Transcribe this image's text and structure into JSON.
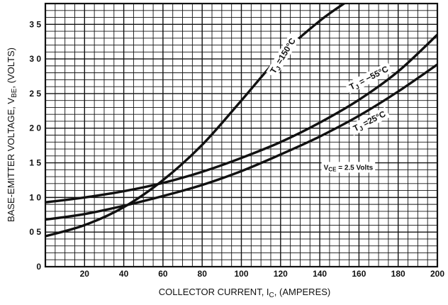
{
  "chart_data": {
    "type": "line",
    "xlabel": "COLLECTOR CURRENT, I",
    "xlabel_sub": "C",
    "xlabel_tail": ", (AMPERES)",
    "ylabel": "BASE-EMITTER VOLTAGE, V",
    "ylabel_sub": "BE",
    "ylabel_tail": ", (VOLTS)",
    "xlim": [
      0,
      200
    ],
    "ylim": [
      0,
      3.8
    ],
    "grid": true,
    "x_ticks": [
      20,
      40,
      60,
      80,
      100,
      120,
      140,
      160,
      180,
      200
    ],
    "y_ticks": [
      {
        "value": 0,
        "label": "0"
      },
      {
        "value": 0.5,
        "label": "0 5"
      },
      {
        "value": 1.0,
        "label": "1 0"
      },
      {
        "value": 1.5,
        "label": "1 5"
      },
      {
        "value": 2.0,
        "label": "2 0"
      },
      {
        "value": 2.5,
        "label": "2 5"
      },
      {
        "value": 3.0,
        "label": "3 0"
      },
      {
        "value": 3.5,
        "label": "3 5"
      }
    ],
    "series": [
      {
        "name": "TJ = 150°C",
        "x": [
          0,
          20,
          40,
          60,
          80,
          100,
          120,
          140,
          155
        ],
        "y": [
          0.44,
          0.6,
          0.86,
          1.25,
          1.76,
          2.4,
          3.05,
          3.55,
          3.85
        ]
      },
      {
        "name": "TJ = −55°C",
        "x": [
          0,
          20,
          40,
          60,
          80,
          100,
          120,
          140,
          160,
          180,
          200
        ],
        "y": [
          0.93,
          1.0,
          1.09,
          1.21,
          1.37,
          1.57,
          1.8,
          2.08,
          2.41,
          2.82,
          3.35
        ]
      },
      {
        "name": "TJ = 25°C",
        "x": [
          0,
          20,
          40,
          60,
          80,
          100,
          120,
          140,
          160,
          180,
          200
        ],
        "y": [
          0.68,
          0.76,
          0.88,
          1.02,
          1.18,
          1.38,
          1.62,
          1.88,
          2.18,
          2.53,
          2.92
        ]
      }
    ],
    "annotations": [
      {
        "text": "T",
        "sub": "J",
        "tail": " =150°C",
        "x": 117,
        "y": 2.78,
        "angle": -58
      },
      {
        "text": "T",
        "sub": "J",
        "tail": " = −55°C",
        "x": 156,
        "y": 2.55,
        "angle": -27
      },
      {
        "text": "T",
        "sub": "J",
        "tail": " =25°C",
        "x": 158,
        "y": 1.95,
        "angle": -27
      }
    ],
    "condition": {
      "text": "V",
      "sub": "CE",
      "tail": " = 2.5 Volts",
      "x": 142,
      "y": 1.4
    }
  }
}
